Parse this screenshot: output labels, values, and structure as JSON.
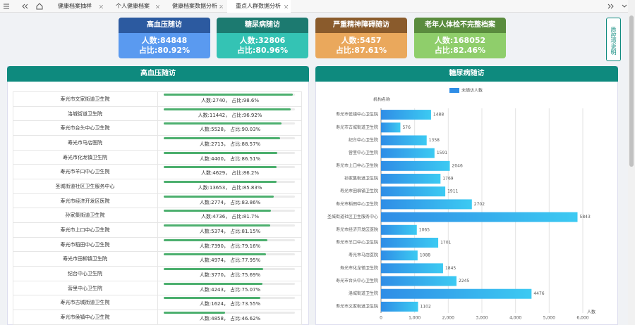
{
  "tabs": [
    "健康档案抽样",
    "个人健康档案",
    "健康档案数据分析",
    "重点人群数据分析"
  ],
  "cards": [
    {
      "title": "高血压随访",
      "count": "人数:84848",
      "ratio": "占比:80.92%"
    },
    {
      "title": "糖尿病随访",
      "count": "人数:32806",
      "ratio": "占比:80.96%"
    },
    {
      "title": "严重精神障碍随访",
      "count": "人数:5457",
      "ratio": "占比:87.61%"
    },
    {
      "title": "老年人体检不完整档案",
      "count": "人数:168052",
      "ratio": "占比:82.46%"
    }
  ],
  "side_button": "质控项说明",
  "left_panel": {
    "title": "高血压随访",
    "rows": [
      {
        "name": "寿光市文家街道卫生院",
        "text": "人数:2740，  占比:98.6%",
        "pct": 98.6
      },
      {
        "name": "洛城街道卫生院",
        "text": "人数:11442，  占比:96.92%",
        "pct": 96.92
      },
      {
        "name": "寿光市台头中心卫生院",
        "text": "人数:5528，  占比:90.03%",
        "pct": 90.03
      },
      {
        "name": "寿光市马店医院",
        "text": "人数:2713，  占比:88.57%",
        "pct": 88.57
      },
      {
        "name": "寿光市化龙镇卫生院",
        "text": "人数:4400，  占比:86.51%",
        "pct": 86.51
      },
      {
        "name": "寿光市羊口中心卫生院",
        "text": "人数:4629，  占比:86.2%",
        "pct": 86.2
      },
      {
        "name": "圣城街道社区卫生服务中心",
        "text": "人数:13653，  占比:85.83%",
        "pct": 85.83
      },
      {
        "name": "寿光市经济开发区医院",
        "text": "人数:2774，  占比:83.86%",
        "pct": 83.86
      },
      {
        "name": "孙家集街道卫生院",
        "text": "人数:4736，  占比:81.7%",
        "pct": 81.7
      },
      {
        "name": "寿光市上口中心卫生院",
        "text": "人数:5374，  占比:81.15%",
        "pct": 81.15
      },
      {
        "name": "寿光市稻田中心卫生院",
        "text": "人数:7390，  占比:79.16%",
        "pct": 79.16
      },
      {
        "name": "寿光市田柳镇卫生院",
        "text": "人数:4974，  占比:77.95%",
        "pct": 77.95
      },
      {
        "name": "纪台中心卫生院",
        "text": "人数:3770，  占比:75.69%",
        "pct": 75.69
      },
      {
        "name": "营里中心卫生院",
        "text": "人数:4243，  占比:75.07%",
        "pct": 75.07
      },
      {
        "name": "寿光市古城街道卫生院",
        "text": "人数:1624，  占比:73.55%",
        "pct": 73.55
      },
      {
        "name": "寿光市侯镇中心卫生院",
        "text": "人数:4858，  占比:46.62%",
        "pct": 46.62
      }
    ]
  },
  "chart_data": {
    "type": "hbar",
    "title": "糖尿病随访",
    "ylabel": "机构名称",
    "xlabel": "人数",
    "categories": [
      "寿光市侯镇中心卫生院",
      "寿光市古城街道卫生院",
      "纪台中心卫生院",
      "营里中心卫生院",
      "寿光市上口中心卫生院",
      "孙家集街道卫生院",
      "寿光市田柳镇卫生院",
      "寿光市稻田中心卫生院",
      "圣城街道社区卫生服务中心",
      "寿光市经济开发区医院",
      "寿光市羊口中心卫生院",
      "寿光市马店医院",
      "寿光市化龙镇卫生院",
      "寿光市台头中心卫生院",
      "洛城街道卫生院",
      "寿光市文家街道卫生院"
    ],
    "series": [
      {
        "name": "未随访人数",
        "color": "#2f8de6",
        "values": [
          1488,
          576,
          1358,
          1591,
          2046,
          1769,
          1911,
          2702,
          5843,
          1065,
          1701,
          1088,
          1845,
          2245,
          4476,
          1102
        ]
      }
    ],
    "xlim": [
      0,
      6000
    ],
    "xticks": [
      0,
      {
        "value": 1000,
        "label": "1,000"
      },
      {
        "value": 2000,
        "label": "2,000"
      },
      {
        "value": 3000,
        "label": "3,000"
      },
      {
        "value": 4000,
        "label": "4,000"
      },
      {
        "value": 5000,
        "label": "5,000"
      },
      {
        "value": 6000,
        "label": "6,000"
      }
    ],
    "grid": true
  }
}
